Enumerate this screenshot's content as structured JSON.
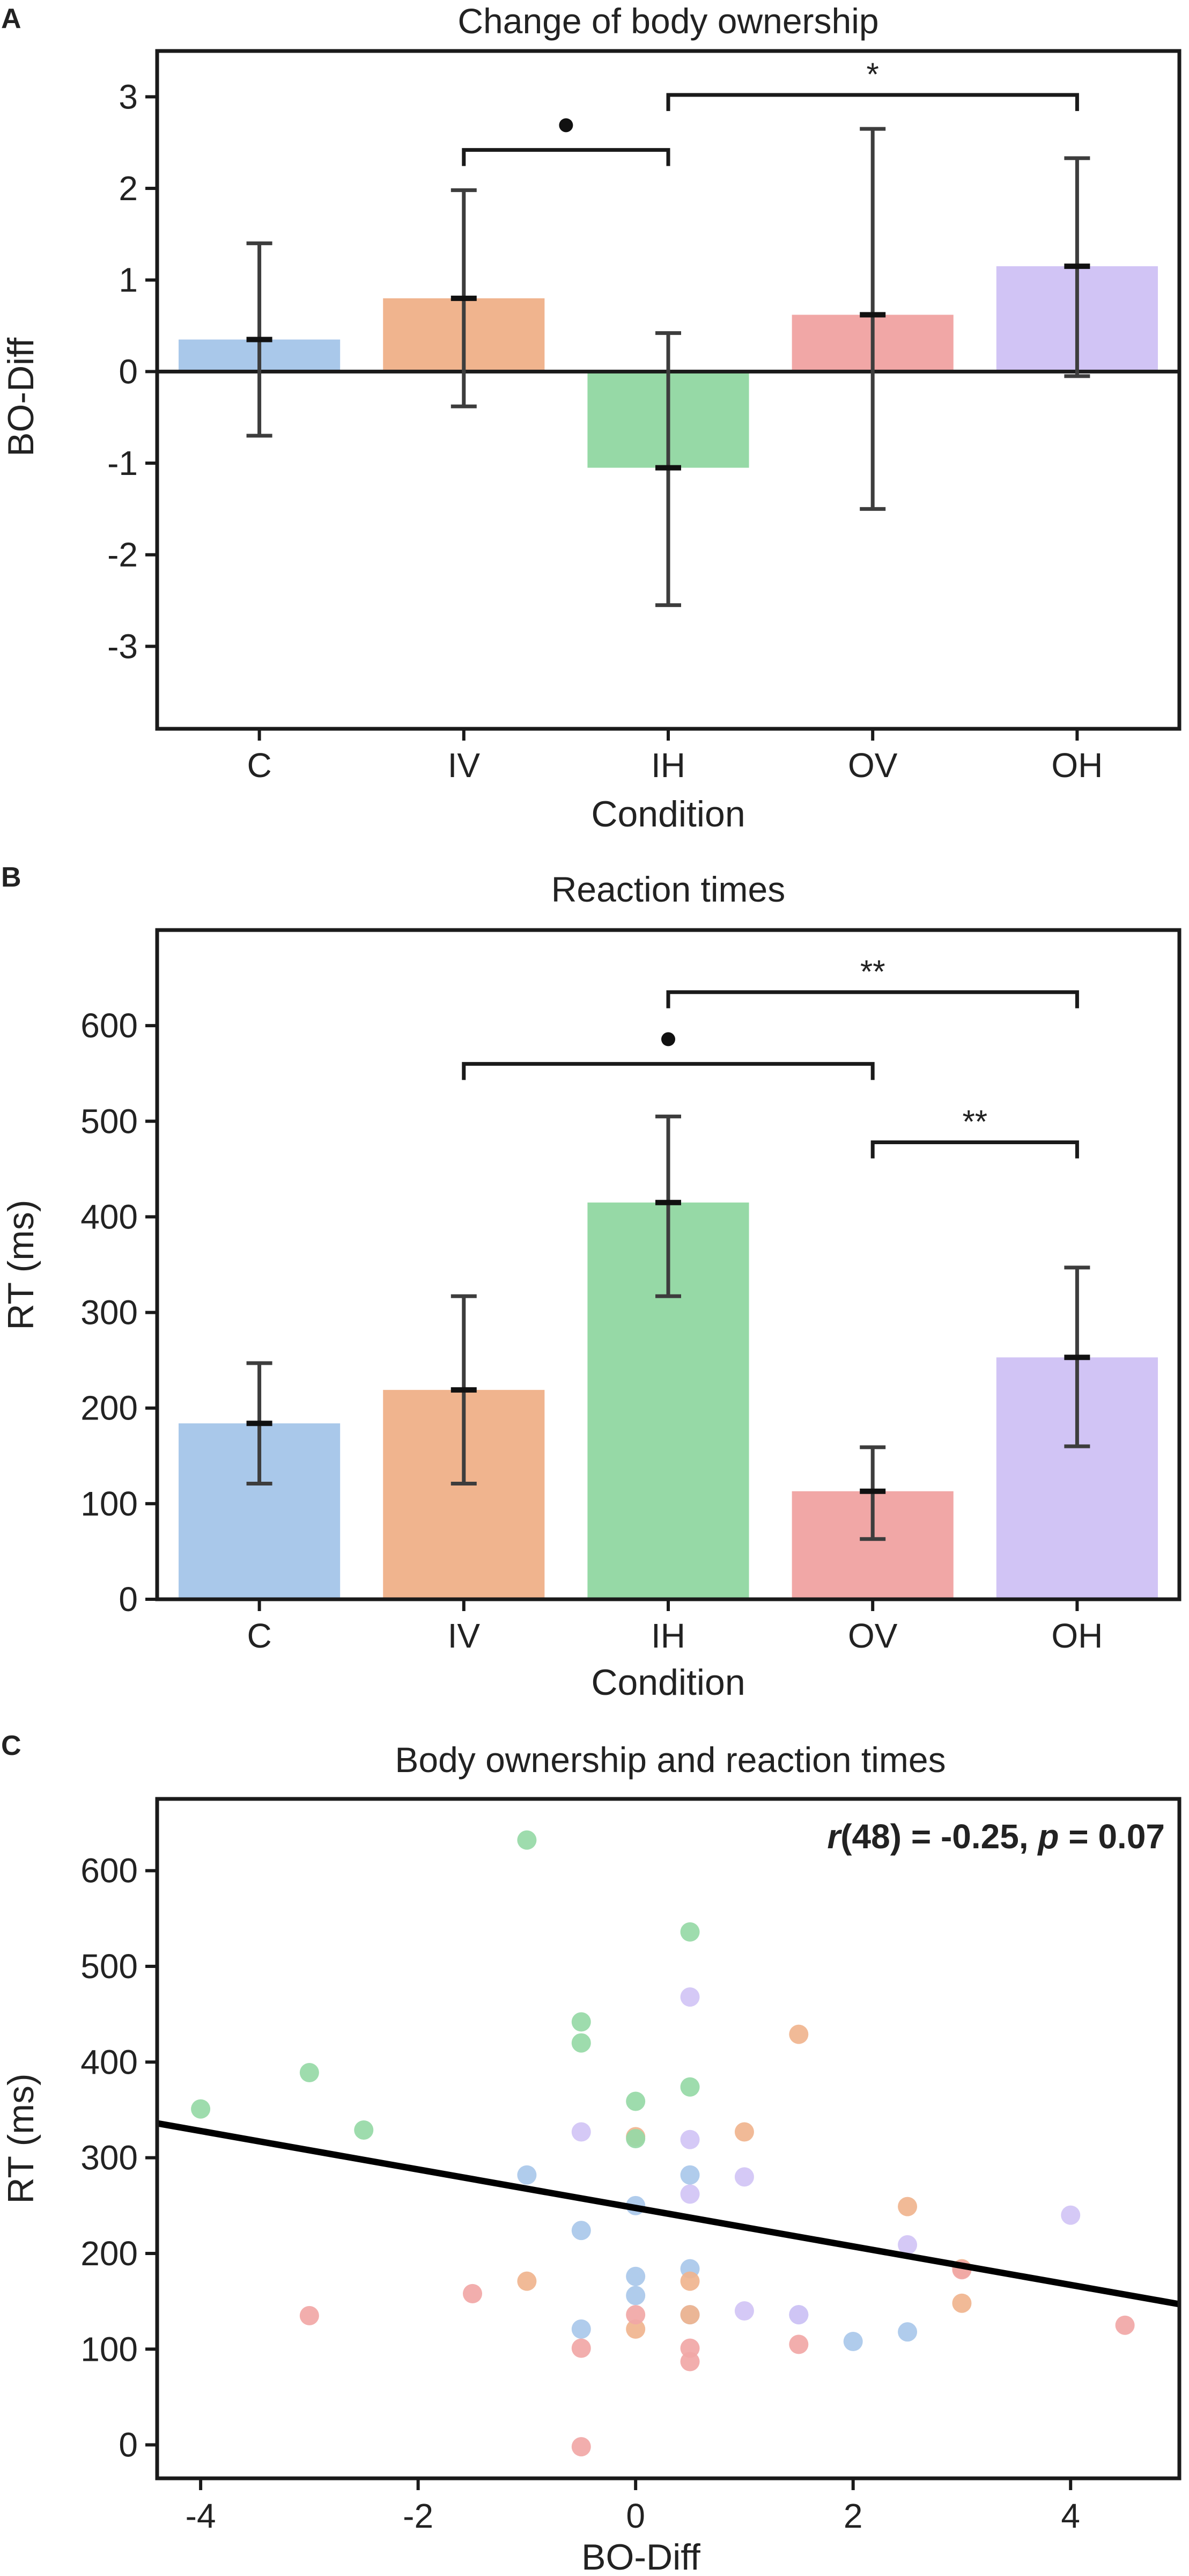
{
  "colors": {
    "C": "#a9c8ea",
    "IV": "#f0b48e",
    "IH": "#96d9a6",
    "OV": "#f1a7a6",
    "OH": "#d1c4f5",
    "axis": "#1a1a1a",
    "errorbar": "#3d3d3d",
    "fit_line": "#000000"
  },
  "chart_data": [
    {
      "panel": "A",
      "type": "bar",
      "title": "Change of body ownership",
      "xlabel": "Condition",
      "ylabel": "BO-Diff",
      "categories": [
        "C",
        "IV",
        "IH",
        "OV",
        "OH"
      ],
      "values": [
        0.35,
        0.8,
        -1.05,
        0.62,
        1.15
      ],
      "error_low": [
        -0.7,
        -0.38,
        -2.55,
        -1.5,
        -0.05
      ],
      "error_high": [
        1.4,
        1.98,
        0.42,
        2.65,
        2.33
      ],
      "ylim": [
        -3.9,
        3.5
      ],
      "yticks": [
        "3",
        "2",
        "1",
        "0",
        "-1",
        "-2",
        "-3"
      ],
      "ytick_values": [
        3,
        2,
        1,
        0,
        -1,
        -2,
        -3
      ],
      "zero_line": true,
      "significance": [
        {
          "from": "IV",
          "to": "IH",
          "y": 2.42,
          "label": "•"
        },
        {
          "from": "IH",
          "to": "OH",
          "y": 3.02,
          "label": "*"
        }
      ]
    },
    {
      "panel": "B",
      "type": "bar",
      "title": "Reaction times",
      "xlabel": "Condition",
      "ylabel": "RT (ms)",
      "categories": [
        "C",
        "IV",
        "IH",
        "OV",
        "OH"
      ],
      "values": [
        184,
        219,
        415,
        113,
        253
      ],
      "error_low": [
        121,
        121,
        317,
        63,
        160
      ],
      "error_high": [
        247,
        317,
        505,
        159,
        347
      ],
      "ylim": [
        0,
        700
      ],
      "yticks": [
        "0",
        "100",
        "200",
        "300",
        "400",
        "500",
        "600"
      ],
      "ytick_values": [
        0,
        100,
        200,
        300,
        400,
        500,
        600
      ],
      "significance": [
        {
          "from": "IH",
          "to": "OH",
          "y": 635,
          "label": "**"
        },
        {
          "from": "IV",
          "to": "OV",
          "y": 560,
          "label": "•"
        },
        {
          "from": "OV",
          "to": "OH",
          "y": 478,
          "label": "**"
        }
      ]
    },
    {
      "panel": "C",
      "type": "scatter",
      "title": "Body ownership and reaction times",
      "xlabel": "BO-Diff",
      "ylabel": "RT (ms)",
      "xlim": [
        -4.4,
        5.0
      ],
      "ylim": [
        -35,
        675
      ],
      "xticks": [
        "-4",
        "-2",
        "0",
        "2",
        "4"
      ],
      "xtick_values": [
        -4,
        -2,
        0,
        2,
        4
      ],
      "yticks": [
        "0",
        "100",
        "200",
        "300",
        "400",
        "500",
        "600"
      ],
      "ytick_values": [
        0,
        100,
        200,
        300,
        400,
        500,
        600
      ],
      "annotation": {
        "r_label": "r",
        "r_text": "(48) = -0.25, ",
        "p_label": "p",
        "p_text": " = 0.07"
      },
      "regression": {
        "x": [
          -4.4,
          5.0
        ],
        "y": [
          336,
          147
        ]
      },
      "series": [
        {
          "name": "C",
          "x": [
            -1.0,
            -0.5,
            -0.5,
            0.0,
            0.0,
            0.0,
            0.5,
            0.5,
            0.5,
            1.5,
            2.0,
            2.5
          ],
          "y": [
            282,
            224,
            121,
            250,
            176,
            156,
            282,
            136,
            184,
            136,
            108,
            118
          ]
        },
        {
          "name": "IV",
          "x": [
            -1.0,
            0.0,
            0.0,
            0.5,
            0.5,
            1.0,
            1.5,
            2.5,
            3.0,
            3.0
          ],
          "y": [
            171,
            322,
            121,
            171,
            136,
            327,
            429,
            249,
            184,
            148
          ]
        },
        {
          "name": "IH",
          "x": [
            -4.0,
            -3.0,
            -2.5,
            -1.0,
            -0.5,
            -0.5,
            0.0,
            0.0,
            0.5,
            0.5
          ],
          "y": [
            351,
            389,
            329,
            632,
            442,
            420,
            359,
            320,
            536,
            374
          ]
        },
        {
          "name": "OV",
          "x": [
            -3.0,
            -1.5,
            -0.5,
            -0.5,
            0.0,
            0.5,
            0.5,
            1.5,
            3.0,
            4.5
          ],
          "y": [
            135,
            158,
            101,
            -2,
            136,
            101,
            87,
            105,
            183,
            125
          ]
        },
        {
          "name": "OH",
          "x": [
            -0.5,
            0.5,
            0.5,
            0.5,
            1.0,
            1.0,
            1.5,
            2.5,
            4.0
          ],
          "y": [
            327,
            468,
            319,
            262,
            280,
            140,
            136,
            209,
            240
          ]
        }
      ]
    }
  ]
}
